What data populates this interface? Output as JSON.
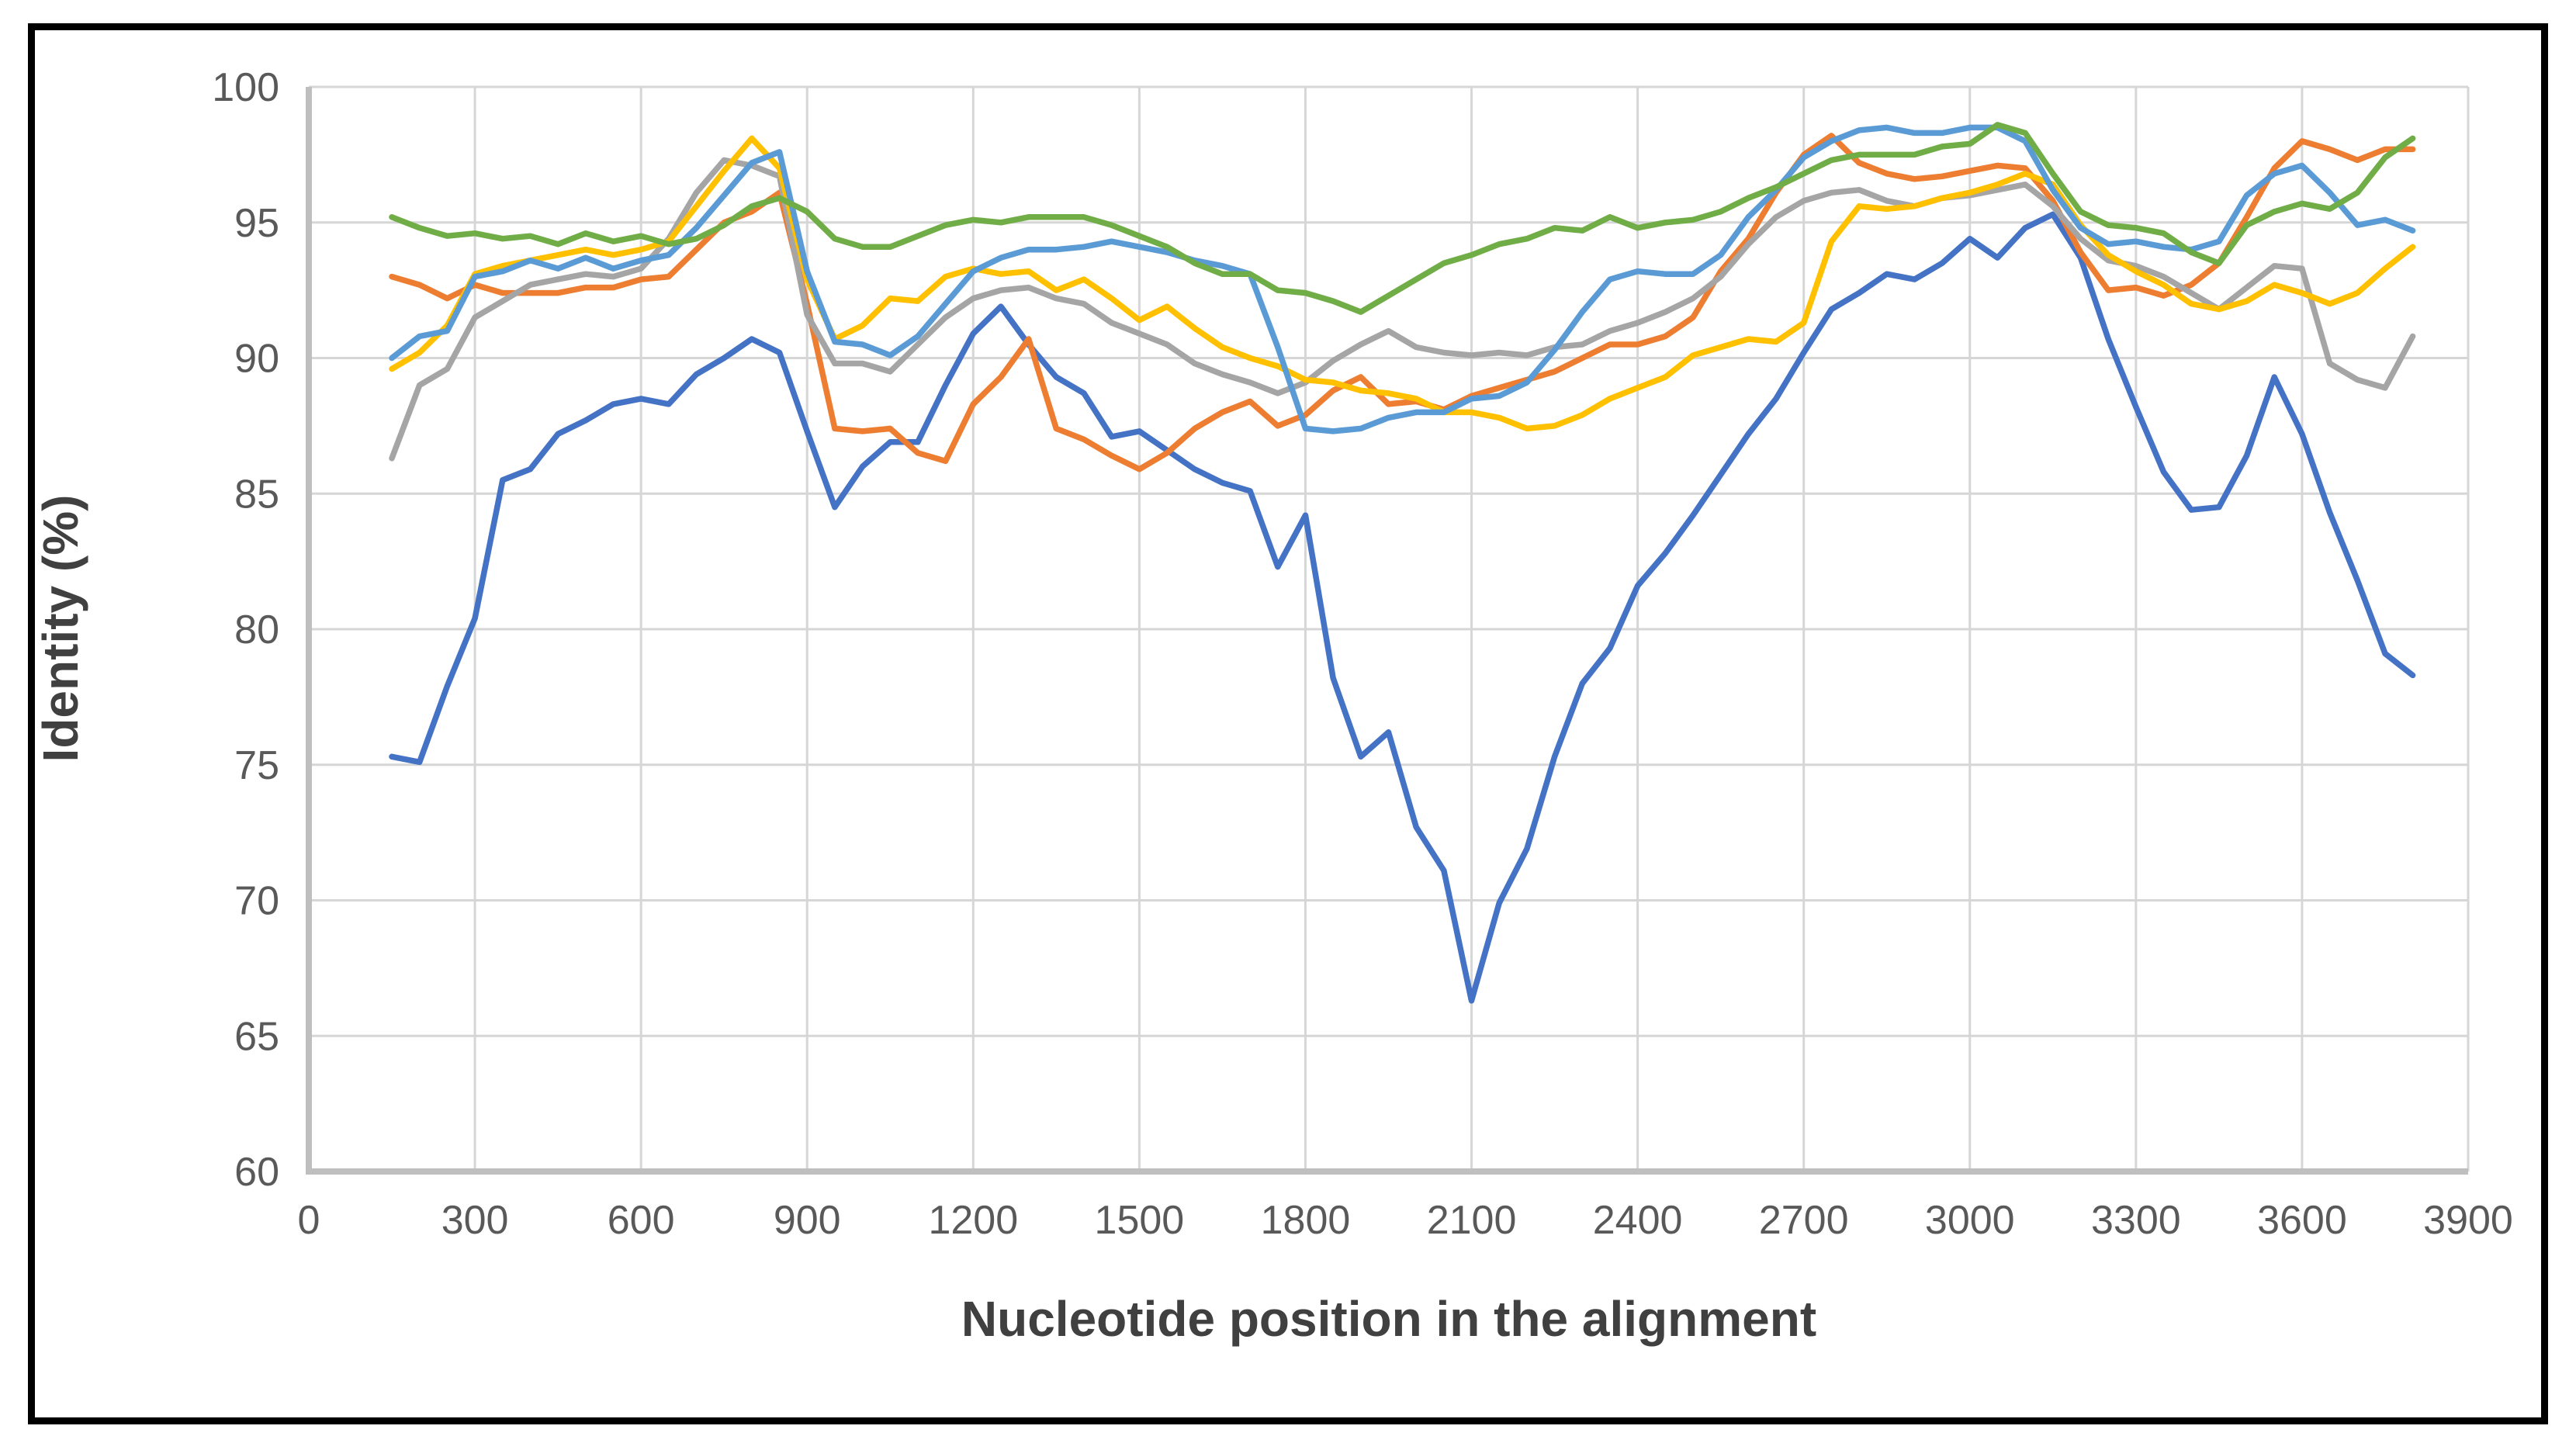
{
  "figure": {
    "background_color": "#FFFFFF",
    "border_color": "#000000",
    "gridline_color": "#D6D6D6",
    "axisline_color": "#BFBFBF",
    "tick_label_color": "#595959",
    "axis_title_color": "#404040"
  },
  "chart_data": {
    "type": "line",
    "title": "",
    "xlabel": "Nucleotide position in the alignment",
    "ylabel": "Identity (%)",
    "xlim": [
      0,
      3900
    ],
    "ylim": [
      60,
      100
    ],
    "x_ticks": [
      0,
      300,
      600,
      900,
      1200,
      1500,
      1800,
      2100,
      2400,
      2700,
      3000,
      3300,
      3600,
      3900
    ],
    "y_ticks": [
      60,
      65,
      70,
      75,
      80,
      85,
      90,
      95,
      100
    ],
    "grid": true,
    "legend_position": "none",
    "x_start": 150,
    "x_step": 50,
    "series": [
      {
        "name": "line-dark-blue",
        "color": "#4472C4",
        "values": [
          75.3,
          75.1,
          77.9,
          80.4,
          85.5,
          85.9,
          87.2,
          87.7,
          88.3,
          88.5,
          88.3,
          89.4,
          90.0,
          90.7,
          90.2,
          87.3,
          84.5,
          86.0,
          86.9,
          86.9,
          89.0,
          90.9,
          91.9,
          90.5,
          89.3,
          88.7,
          87.1,
          87.3,
          86.6,
          85.9,
          85.4,
          85.1,
          82.3,
          84.2,
          78.2,
          75.3,
          76.2,
          72.7,
          71.1,
          66.3,
          69.9,
          71.9,
          75.3,
          78.0,
          79.3,
          81.6,
          82.8,
          84.2,
          85.7,
          87.2,
          88.5,
          90.2,
          91.8,
          92.4,
          93.1,
          92.9,
          93.5,
          94.4,
          93.7,
          94.8,
          95.3,
          93.7,
          90.7,
          88.2,
          85.8,
          84.4,
          84.5,
          86.4,
          89.3,
          87.2,
          84.3,
          81.8,
          79.1,
          78.3
        ]
      },
      {
        "name": "line-orange",
        "color": "#ED7D31",
        "values": [
          93.0,
          92.7,
          92.2,
          92.7,
          92.4,
          92.4,
          92.4,
          92.6,
          92.6,
          92.9,
          93.0,
          94.0,
          95.0,
          95.4,
          96.1,
          92.0,
          87.4,
          87.3,
          87.4,
          86.5,
          86.2,
          88.3,
          89.3,
          90.7,
          87.4,
          87.0,
          86.4,
          85.9,
          86.5,
          87.4,
          88.0,
          88.4,
          87.5,
          87.9,
          88.8,
          89.3,
          88.3,
          88.4,
          88.1,
          88.6,
          88.9,
          89.2,
          89.5,
          90.0,
          90.5,
          90.5,
          90.8,
          91.5,
          93.2,
          94.4,
          96.1,
          97.5,
          98.2,
          97.2,
          96.8,
          96.6,
          96.7,
          96.9,
          97.1,
          97.0,
          95.8,
          93.9,
          92.5,
          92.6,
          92.3,
          92.7,
          93.5,
          95.2,
          97.0,
          98.0,
          97.7,
          97.3,
          97.7,
          97.7
        ]
      },
      {
        "name": "line-gray",
        "color": "#A5A5A5",
        "values": [
          86.3,
          89.0,
          89.6,
          91.5,
          92.1,
          92.7,
          92.9,
          93.1,
          93.0,
          93.3,
          94.4,
          96.1,
          97.3,
          97.1,
          96.7,
          91.6,
          89.8,
          89.8,
          89.5,
          90.5,
          91.5,
          92.2,
          92.5,
          92.6,
          92.2,
          92.0,
          91.3,
          90.9,
          90.5,
          89.8,
          89.4,
          89.1,
          88.7,
          89.1,
          89.9,
          90.5,
          91.0,
          90.4,
          90.2,
          90.1,
          90.2,
          90.1,
          90.4,
          90.5,
          91.0,
          91.3,
          91.7,
          92.2,
          93.0,
          94.2,
          95.2,
          95.8,
          96.1,
          96.2,
          95.8,
          95.6,
          95.9,
          96.0,
          96.2,
          96.4,
          95.6,
          94.4,
          93.6,
          93.4,
          93.0,
          92.4,
          91.8,
          92.6,
          93.4,
          93.3,
          89.8,
          89.2,
          88.9,
          90.8
        ]
      },
      {
        "name": "line-gold",
        "color": "#FFC000",
        "values": [
          89.6,
          90.2,
          91.2,
          93.1,
          93.4,
          93.6,
          93.8,
          94.0,
          93.8,
          94.0,
          94.3,
          95.6,
          96.9,
          98.1,
          97.0,
          92.9,
          90.7,
          91.2,
          92.2,
          92.1,
          93.0,
          93.3,
          93.1,
          93.2,
          92.5,
          92.9,
          92.2,
          91.4,
          91.9,
          91.1,
          90.4,
          90.0,
          89.7,
          89.2,
          89.1,
          88.8,
          88.7,
          88.5,
          88.0,
          88.0,
          87.8,
          87.4,
          87.5,
          87.9,
          88.5,
          88.9,
          89.3,
          90.1,
          90.4,
          90.7,
          90.6,
          91.3,
          94.3,
          95.6,
          95.5,
          95.6,
          95.9,
          96.1,
          96.4,
          96.8,
          96.4,
          94.9,
          93.8,
          93.2,
          92.7,
          92.0,
          91.8,
          92.1,
          92.7,
          92.4,
          92.0,
          92.4,
          93.3,
          94.1
        ]
      },
      {
        "name": "line-light-blue",
        "color": "#5B9BD5",
        "values": [
          90.0,
          90.8,
          91.0,
          93.0,
          93.2,
          93.6,
          93.3,
          93.7,
          93.3,
          93.6,
          93.8,
          94.8,
          96.0,
          97.2,
          97.6,
          93.2,
          90.6,
          90.5,
          90.1,
          90.8,
          92.0,
          93.2,
          93.7,
          94.0,
          94.0,
          94.1,
          94.3,
          94.1,
          93.9,
          93.6,
          93.4,
          93.1,
          90.4,
          87.4,
          87.3,
          87.4,
          87.8,
          88.0,
          88.0,
          88.5,
          88.6,
          89.1,
          90.3,
          91.7,
          92.9,
          93.2,
          93.1,
          93.1,
          93.8,
          95.2,
          96.2,
          97.4,
          98.0,
          98.4,
          98.5,
          98.3,
          98.3,
          98.5,
          98.5,
          98.0,
          96.2,
          94.8,
          94.2,
          94.3,
          94.1,
          94.0,
          94.3,
          96.0,
          96.8,
          97.1,
          96.1,
          94.9,
          95.1,
          94.7
        ]
      },
      {
        "name": "line-green",
        "color": "#70AD47",
        "values": [
          95.2,
          94.8,
          94.5,
          94.6,
          94.4,
          94.5,
          94.2,
          94.6,
          94.3,
          94.5,
          94.2,
          94.4,
          94.9,
          95.6,
          95.9,
          95.4,
          94.4,
          94.1,
          94.1,
          94.5,
          94.9,
          95.1,
          95.0,
          95.2,
          95.2,
          95.2,
          94.9,
          94.5,
          94.1,
          93.5,
          93.1,
          93.1,
          92.5,
          92.4,
          92.1,
          91.7,
          92.3,
          92.9,
          93.5,
          93.8,
          94.2,
          94.4,
          94.8,
          94.7,
          95.2,
          94.8,
          95.0,
          95.1,
          95.4,
          95.9,
          96.3,
          96.8,
          97.3,
          97.5,
          97.5,
          97.5,
          97.8,
          97.9,
          98.6,
          98.3,
          96.8,
          95.4,
          94.9,
          94.8,
          94.6,
          93.9,
          93.5,
          94.9,
          95.4,
          95.7,
          95.5,
          96.1,
          97.4,
          98.1
        ]
      }
    ]
  }
}
